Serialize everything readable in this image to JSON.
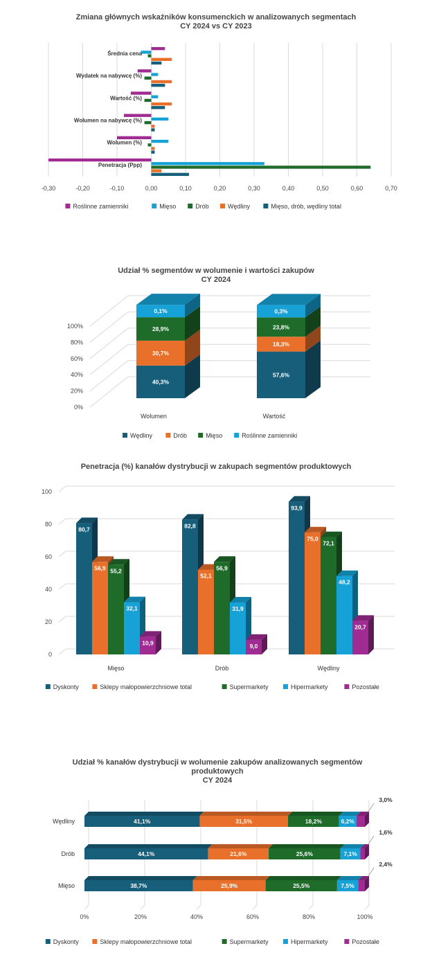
{
  "colors": {
    "roslinne": "#a02b93",
    "mieso": "#16a2d6",
    "drob": "#1e6b2a",
    "wedliny": "#e8702a",
    "total": "#175e7a",
    "dyskonty": "#175e7a",
    "sklepy": "#e8702a",
    "supermarkety": "#1e6b2a",
    "hipermarkety": "#16a2d6",
    "pozostale": "#a02b93",
    "grid": "#d9d9d9"
  },
  "chart_data": [
    {
      "type": "bar",
      "orientation": "horizontal",
      "title": [
        "Zmiana głównych wskaźników konsumenckich w analizowanych segmentach",
        "CY 2024 vs CY 2023"
      ],
      "categories": [
        "Średnia cena",
        "Wydatek na nabywcę (%)",
        "Wartość (%)",
        "Wolumen na nabywcę (%)",
        "Wolumen (%)",
        "Penetracja (Ppp)"
      ],
      "series": [
        {
          "name": "Roślinne zamienniki",
          "values": [
            0.04,
            -0.04,
            -0.06,
            -0.08,
            -0.1,
            -0.3
          ]
        },
        {
          "name": "Mięso",
          "values": [
            -0.03,
            0.02,
            0.02,
            0.05,
            0.05,
            0.33
          ]
        },
        {
          "name": "Drób",
          "values": [
            -0.01,
            -0.02,
            -0.02,
            -0.02,
            -0.01,
            0.64
          ]
        },
        {
          "name": "Wędliny",
          "values": [
            0.06,
            0.06,
            0.06,
            0.01,
            0.01,
            0.03
          ]
        },
        {
          "name": "Mięso, drób, wędliny total",
          "values": [
            0.03,
            0.04,
            0.04,
            0.01,
            0.01,
            0.11
          ]
        }
      ],
      "x_ticks": [
        "-0,30",
        "-0,20",
        "-0,10",
        "0,00",
        "0,10",
        "0,20",
        "0,30",
        "0,40",
        "0,50",
        "0,60",
        "0,70"
      ],
      "xlim": [
        -0.3,
        0.7
      ],
      "legend": "bottom",
      "grid": true
    },
    {
      "type": "bar",
      "stacked": true,
      "percent": true,
      "style": "3d",
      "title": [
        "Udział % segmentów w wolumenie i wartości zakupów",
        "CY 2024"
      ],
      "categories": [
        "Wolumen",
        "Wartość"
      ],
      "series": [
        {
          "name": "Wędliny",
          "values": [
            40.3,
            57.6
          ],
          "labels": [
            "40,3%",
            "57,6%"
          ]
        },
        {
          "name": "Drób",
          "values": [
            30.7,
            18.3
          ],
          "labels": [
            "30,7%",
            "18,3%"
          ]
        },
        {
          "name": "Mięso",
          "values": [
            28.9,
            23.8
          ],
          "labels": [
            "28,9%",
            "23,8%"
          ]
        },
        {
          "name": "Roślinne zamienniki",
          "values": [
            0.1,
            0.3
          ],
          "labels": [
            "0,1%",
            "0,3%"
          ]
        }
      ],
      "y_ticks": [
        "0%",
        "20%",
        "40%",
        "60%",
        "80%",
        "100%"
      ],
      "ylim": [
        0,
        100
      ],
      "legend": "bottom",
      "grid": true
    },
    {
      "type": "bar",
      "style": "3d",
      "title": [
        "Penetracja (%) kanałów dystrybucji w zakupach segmentów produktowych"
      ],
      "categories": [
        "Mięso",
        "Drób",
        "Wędliny"
      ],
      "series": [
        {
          "name": "Dyskonty",
          "values": [
            80.7,
            82.8,
            93.9
          ],
          "labels": [
            "80,7",
            "82,8",
            "93,9"
          ]
        },
        {
          "name": "Sklepy małopowierzchniowe total",
          "values": [
            56.9,
            52.1,
            75.0
          ],
          "labels": [
            "56,9",
            "52,1",
            "75,0"
          ]
        },
        {
          "name": "Supermarkety",
          "values": [
            55.2,
            56.9,
            72.1
          ],
          "labels": [
            "55,2",
            "56,9",
            "72,1"
          ]
        },
        {
          "name": "Hipermarkety",
          "values": [
            32.1,
            31.9,
            48.2
          ],
          "labels": [
            "32,1",
            "31,9",
            "48,2"
          ]
        },
        {
          "name": "Pozostałe",
          "values": [
            10.9,
            9.0,
            20.7
          ],
          "labels": [
            "10,9",
            "9,0",
            "20,7"
          ]
        }
      ],
      "y_ticks": [
        "0",
        "20",
        "40",
        "60",
        "80",
        "100"
      ],
      "ylim": [
        0,
        100
      ],
      "legend": "bottom",
      "grid": true
    },
    {
      "type": "bar",
      "orientation": "horizontal",
      "stacked": true,
      "percent": true,
      "style": "3d",
      "title": [
        "Udział % kanałów dystrybucji w wolumenie zakupów analizowanych segmentów",
        "produktowych",
        "CY 2024"
      ],
      "categories": [
        "Wędliny",
        "Drób",
        "Mięso"
      ],
      "series": [
        {
          "name": "Dyskonty",
          "values": [
            41.1,
            44.1,
            38.7
          ],
          "labels": [
            "41,1%",
            "44,1%",
            "38,7%"
          ]
        },
        {
          "name": "Sklepy małopowierzchniowe total",
          "values": [
            31.5,
            21.6,
            25.9
          ],
          "labels": [
            "31,5%",
            "21,6%",
            "25,9%"
          ]
        },
        {
          "name": "Supermarkety",
          "values": [
            18.2,
            25.6,
            25.5
          ],
          "labels": [
            "18,2%",
            "25,6%",
            "25,5%"
          ]
        },
        {
          "name": "Hipermarkety",
          "values": [
            6.2,
            7.1,
            7.5
          ],
          "labels": [
            "6,2%",
            "7,1%",
            "7,5%"
          ]
        },
        {
          "name": "Pozostałe",
          "values": [
            3.0,
            1.6,
            2.4
          ],
          "labels": [
            "3,0%",
            "1,6%",
            "2,4%"
          ]
        }
      ],
      "x_ticks": [
        "0%",
        "20%",
        "40%",
        "60%",
        "80%",
        "100%"
      ],
      "xlim": [
        0,
        100
      ],
      "legend": "bottom",
      "grid": true
    }
  ]
}
